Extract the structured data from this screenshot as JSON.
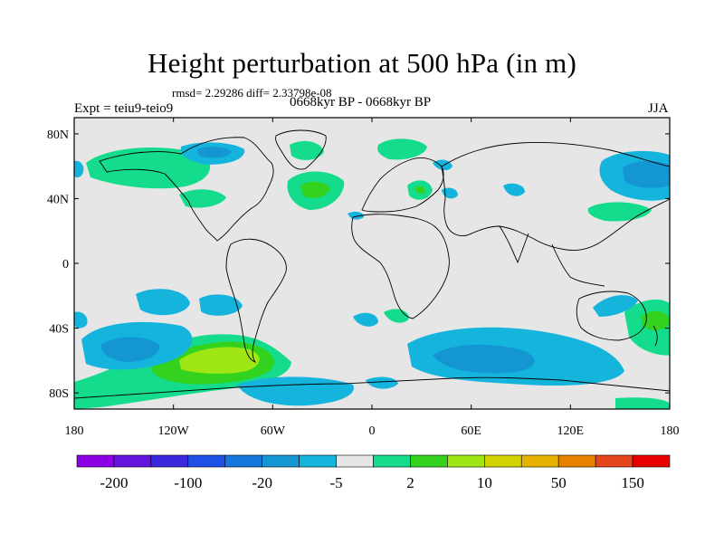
{
  "title": "Height perturbation at 500 hPa (in m)",
  "stats": "rmsd= 2.29286 diff= 2.33798e-08",
  "experiment": "Expt = teiu9-teio9",
  "period": "0668kyr BP - 0668kyr BP",
  "season": "JJA",
  "map": {
    "lon_ticks": [
      "180",
      "120W",
      "60W",
      "0",
      "60E",
      "120E",
      "180"
    ],
    "lat_ticks": [
      "80N",
      "40N",
      "0",
      "40S",
      "80S"
    ],
    "background_color": "#e6e6e6"
  },
  "colorbar": {
    "colors": [
      "#8c00e6",
      "#6414dc",
      "#3c28dc",
      "#1e50e6",
      "#1478dc",
      "#1496d2",
      "#14b4dc",
      "#e6e6e6",
      "#14dc8c",
      "#32d21e",
      "#a0e614",
      "#d2d200",
      "#e6b400",
      "#e68200",
      "#e6461e",
      "#e60000"
    ],
    "labels": [
      "-200",
      "-100",
      "-20",
      "-5",
      "2",
      "10",
      "50",
      "150"
    ]
  }
}
